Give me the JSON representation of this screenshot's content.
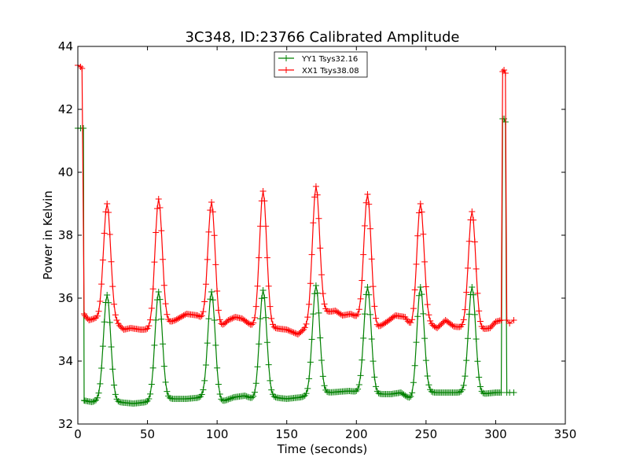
{
  "chart_data": {
    "type": "line",
    "title": "3C348, ID:23766 Calibrated Amplitude",
    "xlabel": "Time (seconds)",
    "ylabel": "Power in Kelvin",
    "xlim": [
      0,
      350
    ],
    "ylim": [
      32,
      44
    ],
    "xticks": [
      0,
      50,
      100,
      150,
      200,
      250,
      300,
      350
    ],
    "yticks": [
      32,
      34,
      36,
      38,
      40,
      42,
      44
    ],
    "grid": false,
    "legend_position": "top-center",
    "marker": "+",
    "series": [
      {
        "name": "YY1 Tsys32.16",
        "color": "#008000",
        "peaks": [
          {
            "t": 21,
            "h": 36.1
          },
          {
            "t": 58,
            "h": 36.2
          },
          {
            "t": 96,
            "h": 36.2
          },
          {
            "t": 133,
            "h": 36.25
          },
          {
            "t": 171,
            "h": 36.4
          },
          {
            "t": 208,
            "h": 36.35
          },
          {
            "t": 246,
            "h": 36.35
          },
          {
            "t": 283,
            "h": 36.35
          }
        ],
        "baseline": [
          [
            4,
            32.75
          ],
          [
            10,
            32.7
          ],
          [
            15,
            32.75
          ],
          [
            28,
            32.7
          ],
          [
            40,
            32.65
          ],
          [
            50,
            32.7
          ],
          [
            65,
            32.8
          ],
          [
            78,
            32.8
          ],
          [
            90,
            32.85
          ],
          [
            103,
            32.7
          ],
          [
            112,
            32.85
          ],
          [
            120,
            32.9
          ],
          [
            128,
            32.75
          ],
          [
            140,
            32.85
          ],
          [
            150,
            32.8
          ],
          [
            160,
            32.85
          ],
          [
            180,
            33.0
          ],
          [
            195,
            33.05
          ],
          [
            205,
            33.0
          ],
          [
            215,
            32.95
          ],
          [
            225,
            32.95
          ],
          [
            232,
            33.0
          ],
          [
            240,
            32.75
          ],
          [
            252,
            33.0
          ],
          [
            262,
            33.0
          ],
          [
            275,
            33.0
          ],
          [
            290,
            32.95
          ],
          [
            300,
            33.0
          ],
          [
            304,
            33.0
          ]
        ],
        "edge": [
          [
            0,
            41.4
          ],
          [
            2,
            41.4
          ],
          [
            4,
            41.4
          ],
          [
            4.5,
            32.75
          ],
          [
            304,
            33.0
          ],
          [
            305,
            41.7
          ],
          [
            306,
            41.7
          ],
          [
            307,
            41.6
          ],
          [
            308,
            33.0
          ],
          [
            310,
            33.0
          ],
          [
            313,
            33.0
          ]
        ]
      },
      {
        "name": "XX1 Tsys38.08",
        "color": "#ff0000",
        "peaks": [
          {
            "t": 21,
            "h": 39.0
          },
          {
            "t": 58,
            "h": 39.15
          },
          {
            "t": 96,
            "h": 39.05
          },
          {
            "t": 133,
            "h": 39.4
          },
          {
            "t": 171,
            "h": 39.55
          },
          {
            "t": 208,
            "h": 39.3
          },
          {
            "t": 246,
            "h": 39.0
          },
          {
            "t": 283,
            "h": 38.75
          }
        ],
        "baseline": [
          [
            4,
            35.5
          ],
          [
            8,
            35.3
          ],
          [
            12,
            35.35
          ],
          [
            28,
            35.2
          ],
          [
            33,
            35.0
          ],
          [
            38,
            35.05
          ],
          [
            45,
            35.0
          ],
          [
            50,
            35.0
          ],
          [
            64,
            35.2
          ],
          [
            70,
            35.3
          ],
          [
            78,
            35.5
          ],
          [
            86,
            35.45
          ],
          [
            90,
            35.3
          ],
          [
            101,
            35.0
          ],
          [
            108,
            35.3
          ],
          [
            113,
            35.4
          ],
          [
            118,
            35.35
          ],
          [
            124,
            35.15
          ],
          [
            128,
            35.05
          ],
          [
            140,
            35.05
          ],
          [
            150,
            35.0
          ],
          [
            158,
            34.85
          ],
          [
            165,
            35.1
          ],
          [
            178,
            35.55
          ],
          [
            185,
            35.6
          ],
          [
            190,
            35.45
          ],
          [
            196,
            35.5
          ],
          [
            215,
            35.05
          ],
          [
            222,
            35.25
          ],
          [
            228,
            35.45
          ],
          [
            235,
            35.4
          ],
          [
            240,
            35.05
          ],
          [
            252,
            35.2
          ],
          [
            258,
            35.05
          ],
          [
            264,
            35.3
          ],
          [
            270,
            35.1
          ],
          [
            278,
            35.05
          ],
          [
            290,
            35.0
          ],
          [
            296,
            35.05
          ],
          [
            300,
            35.25
          ],
          [
            304,
            35.3
          ]
        ],
        "edge": [
          [
            0,
            43.4
          ],
          [
            2,
            43.35
          ],
          [
            3,
            43.3
          ],
          [
            4.5,
            35.5
          ],
          [
            304,
            35.3
          ],
          [
            305,
            43.2
          ],
          [
            306,
            43.25
          ],
          [
            307,
            43.15
          ],
          [
            308,
            35.3
          ],
          [
            310,
            35.2
          ],
          [
            313,
            35.3
          ]
        ]
      }
    ]
  }
}
